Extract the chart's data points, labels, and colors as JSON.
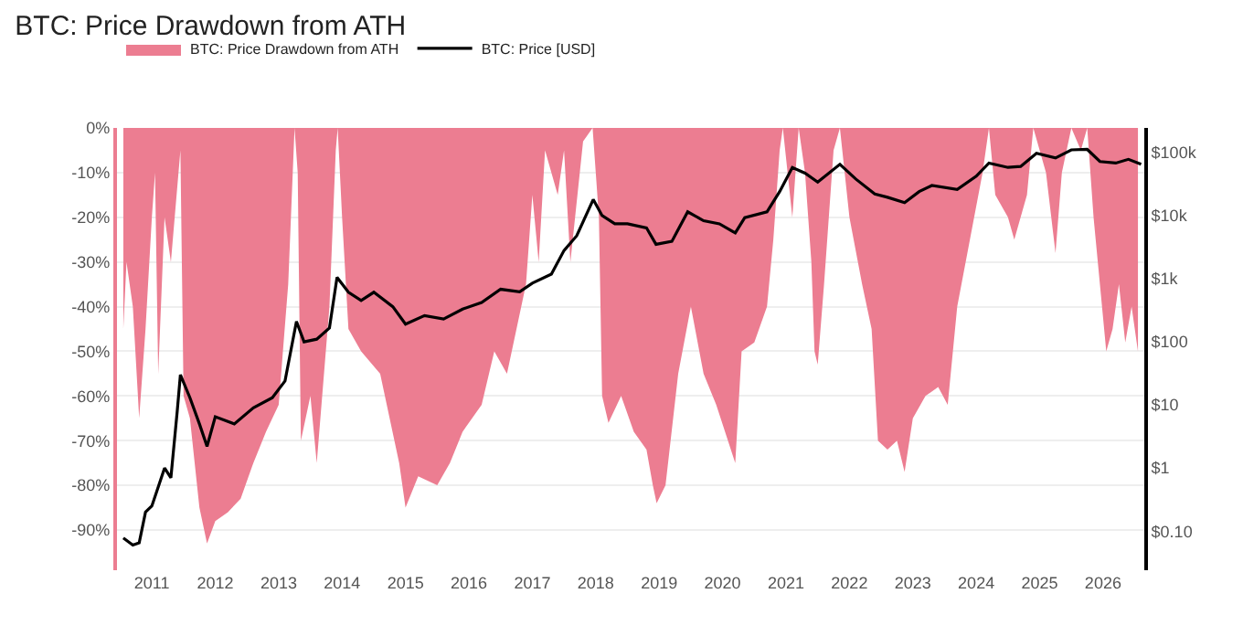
{
  "chart_data": {
    "type": "area",
    "title": "BTC: Price Drawdown from ATH",
    "xlim": [
      2010.45,
      2026.65
    ],
    "xticks": [
      2011,
      2012,
      2013,
      2014,
      2015,
      2016,
      2017,
      2018,
      2019,
      2020,
      2021,
      2022,
      2023,
      2024,
      2025,
      2026
    ],
    "ylim": [
      -99,
      0
    ],
    "yticks": [
      {
        "value": 0,
        "label": "0%"
      },
      {
        "value": -10,
        "label": "-10%"
      },
      {
        "value": -20,
        "label": "-20%"
      },
      {
        "value": -30,
        "label": "-30%"
      },
      {
        "value": -40,
        "label": "-40%"
      },
      {
        "value": -50,
        "label": "-50%"
      },
      {
        "value": -60,
        "label": "-60%"
      },
      {
        "value": -70,
        "label": "-70%"
      },
      {
        "value": -80,
        "label": "-80%"
      },
      {
        "value": -90,
        "label": "-90%"
      }
    ],
    "y2lim": [
      0.024,
      245000
    ],
    "y2ticks": [
      {
        "value": 0.1,
        "label": "$0.10"
      },
      {
        "value": 1,
        "label": "$1"
      },
      {
        "value": 10,
        "label": "$10"
      },
      {
        "value": 100,
        "label": "$100"
      },
      {
        "value": 1000,
        "label": "$1k"
      },
      {
        "value": 10000,
        "label": "$10k"
      },
      {
        "value": 100000,
        "label": "$100k"
      }
    ],
    "log": "y2",
    "grid": "y",
    "legend": "top left",
    "series": [
      {
        "name": "BTC: Price Drawdown from ATH",
        "color": "#ec7d91",
        "x": [
          2010.55,
          2010.6,
          2010.7,
          2010.8,
          2010.9,
          2011.0,
          2011.05,
          2011.1,
          2011.2,
          2011.3,
          2011.45,
          2011.5,
          2011.6,
          2011.75,
          2011.87,
          2012.0,
          2012.2,
          2012.4,
          2012.6,
          2012.8,
          2013.0,
          2013.15,
          2013.25,
          2013.3,
          2013.35,
          2013.5,
          2013.6,
          2013.8,
          2013.9,
          2013.93,
          2014.0,
          2014.1,
          2014.3,
          2014.6,
          2014.9,
          2015.0,
          2015.2,
          2015.5,
          2015.7,
          2015.9,
          2016.2,
          2016.4,
          2016.6,
          2016.9,
          2017.0,
          2017.1,
          2017.2,
          2017.4,
          2017.5,
          2017.6,
          2017.8,
          2017.95,
          2018.05,
          2018.1,
          2018.2,
          2018.4,
          2018.6,
          2018.8,
          2018.9,
          2018.96,
          2019.1,
          2019.3,
          2019.5,
          2019.7,
          2019.9,
          2020.2,
          2020.3,
          2020.5,
          2020.7,
          2020.8,
          2020.9,
          2020.95,
          2021.1,
          2021.2,
          2021.3,
          2021.4,
          2021.45,
          2021.5,
          2021.6,
          2021.75,
          2021.85,
          2022.0,
          2022.2,
          2022.35,
          2022.45,
          2022.6,
          2022.75,
          2022.87,
          2023.0,
          2023.2,
          2023.4,
          2023.55,
          2023.7,
          2023.9,
          2024.1,
          2024.2,
          2024.3,
          2024.5,
          2024.6,
          2024.8,
          2024.9,
          2025.1,
          2025.25,
          2025.35,
          2025.5,
          2025.65,
          2025.75,
          2025.85,
          2025.95,
          2026.05,
          2026.15,
          2026.25,
          2026.35,
          2026.45,
          2026.55
        ],
        "values": [
          -45,
          -30,
          -40,
          -65,
          -45,
          -20,
          -10,
          -55,
          -20,
          -30,
          -5,
          -60,
          -65,
          -85,
          -93,
          -88,
          -86,
          -83,
          -75,
          -68,
          -62,
          -35,
          0,
          -10,
          -70,
          -60,
          -75,
          -40,
          -5,
          0,
          -20,
          -45,
          -50,
          -55,
          -75,
          -85,
          -78,
          -80,
          -75,
          -68,
          -62,
          -50,
          -55,
          -35,
          -15,
          -30,
          -5,
          -15,
          -5,
          -30,
          -3,
          0,
          -20,
          -60,
          -66,
          -60,
          -68,
          -72,
          -80,
          -84,
          -80,
          -55,
          -40,
          -55,
          -62,
          -75,
          -50,
          -48,
          -40,
          -25,
          -5,
          0,
          -20,
          0,
          -10,
          -30,
          -50,
          -53,
          -35,
          -5,
          0,
          -20,
          -35,
          -45,
          -70,
          -72,
          -70,
          -77,
          -65,
          -60,
          -58,
          -62,
          -40,
          -25,
          -10,
          0,
          -15,
          -20,
          -25,
          -15,
          0,
          -10,
          -28,
          -10,
          0,
          -5,
          0,
          -20,
          -35,
          -50,
          -45,
          -35,
          -48,
          -40,
          -50
        ]
      },
      {
        "name": "BTC: Price [USD]",
        "type": "line",
        "axis": "y2",
        "color": "#000000",
        "x": [
          2010.55,
          2010.7,
          2010.8,
          2010.9,
          2011.0,
          2011.1,
          2011.2,
          2011.3,
          2011.4,
          2011.45,
          2011.6,
          2011.75,
          2011.87,
          2012.0,
          2012.3,
          2012.6,
          2012.9,
          2013.1,
          2013.28,
          2013.4,
          2013.6,
          2013.8,
          2013.92,
          2014.1,
          2014.3,
          2014.5,
          2014.8,
          2015.0,
          2015.3,
          2015.6,
          2015.9,
          2016.2,
          2016.5,
          2016.8,
          2017.0,
          2017.3,
          2017.5,
          2017.7,
          2017.96,
          2018.1,
          2018.3,
          2018.5,
          2018.8,
          2018.95,
          2019.2,
          2019.45,
          2019.7,
          2019.95,
          2020.2,
          2020.35,
          2020.7,
          2020.9,
          2021.1,
          2021.3,
          2021.5,
          2021.85,
          2022.1,
          2022.4,
          2022.6,
          2022.87,
          2023.1,
          2023.3,
          2023.7,
          2024.0,
          2024.2,
          2024.5,
          2024.7,
          2024.95,
          2025.25,
          2025.5,
          2025.75,
          2025.95,
          2026.2,
          2026.4,
          2026.6
        ],
        "values": [
          0.078,
          0.06,
          0.065,
          0.2,
          0.25,
          0.5,
          1.0,
          0.7,
          8,
          30,
          13,
          5,
          2.2,
          6.5,
          5,
          9,
          13,
          24,
          210,
          100,
          110,
          165,
          1050,
          610,
          450,
          610,
          360,
          190,
          260,
          230,
          330,
          420,
          680,
          620,
          850,
          1180,
          2800,
          4800,
          18000,
          10000,
          7400,
          7400,
          6400,
          3500,
          3900,
          11500,
          8300,
          7400,
          5300,
          9300,
          11500,
          24000,
          58000,
          47000,
          34000,
          65000,
          38000,
          22000,
          19500,
          16000,
          24000,
          30000,
          26000,
          42000,
          68000,
          58000,
          60000,
          97000,
          82000,
          110000,
          112000,
          72000,
          68000,
          78000,
          65000
        ]
      }
    ]
  }
}
